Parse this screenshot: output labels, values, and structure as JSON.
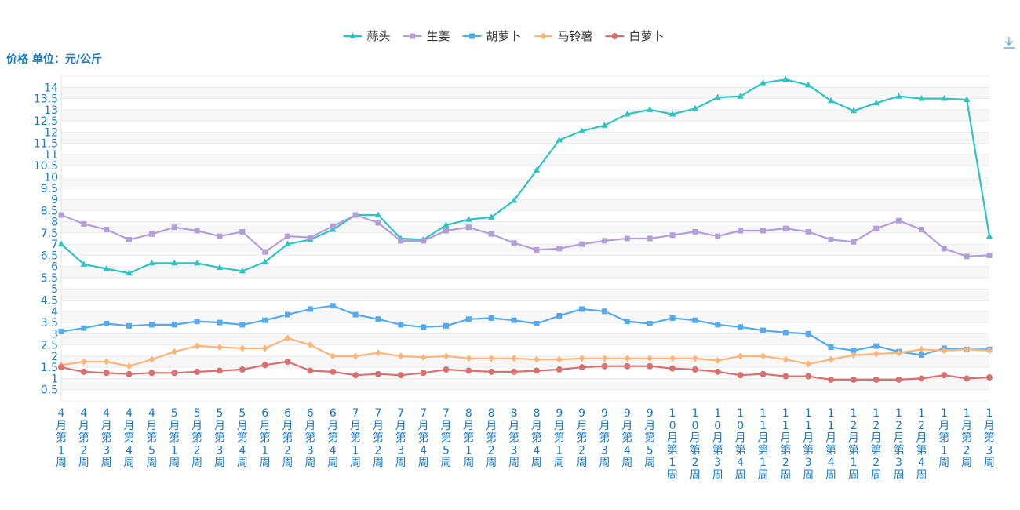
{
  "chart_data": {
    "type": "line",
    "ylabel": "价格 单位：元/公斤",
    "ylim": [
      0,
      14.5
    ],
    "y_ticks": [
      0.5,
      1,
      1.5,
      2,
      2.5,
      3,
      3.5,
      4,
      4.5,
      5,
      5.5,
      6,
      6.5,
      7,
      7.5,
      8,
      8.5,
      9,
      9.5,
      10,
      10.5,
      11,
      11.5,
      12,
      12.5,
      13,
      13.5,
      14
    ],
    "grid": true,
    "legend_position": "top-center",
    "categories": [
      "4月第1周",
      "4月第2周",
      "4月第3周",
      "4月第4周",
      "4月第5周",
      "5月第1周",
      "5月第2周",
      "5月第3周",
      "5月第4周",
      "6月第1周",
      "6月第2周",
      "6月第3周",
      "6月第4周",
      "7月第1周",
      "7月第2周",
      "7月第3周",
      "7月第4周",
      "7月第5周",
      "8月第1周",
      "8月第2周",
      "8月第3周",
      "8月第4周",
      "9月第1周",
      "9月第2周",
      "9月第3周",
      "9月第4周",
      "9月第5周",
      "10月第1周",
      "10月第2周",
      "10月第3周",
      "10月第4周",
      "11月第1周",
      "11月第2周",
      "11月第3周",
      "11月第4周",
      "12月第1周",
      "12月第2周",
      "12月第3周",
      "12月第4周",
      "1月第1周",
      "1月第2周",
      "1月第3周"
    ],
    "series": [
      {
        "name": "蒜头",
        "marker": "triangle",
        "color": "#2ec4c4",
        "values": [
          7.0,
          6.1,
          5.9,
          5.7,
          6.15,
          6.15,
          6.15,
          5.95,
          5.8,
          6.2,
          7.0,
          7.2,
          7.65,
          8.3,
          8.3,
          7.25,
          7.2,
          7.85,
          8.1,
          8.2,
          8.95,
          10.3,
          11.65,
          12.05,
          12.3,
          12.8,
          13.0,
          12.8,
          13.05,
          13.55,
          13.6,
          14.2,
          14.35,
          14.1,
          13.4,
          12.95,
          13.3,
          13.6,
          13.5,
          13.5,
          13.45,
          7.35
        ]
      },
      {
        "name": "生姜",
        "marker": "square",
        "color": "#b39ddb",
        "values": [
          8.3,
          7.9,
          7.65,
          7.2,
          7.45,
          7.75,
          7.6,
          7.35,
          7.55,
          6.65,
          7.35,
          7.3,
          7.8,
          8.3,
          7.95,
          7.15,
          7.15,
          7.6,
          7.75,
          7.45,
          7.05,
          6.75,
          6.8,
          7.0,
          7.15,
          7.25,
          7.25,
          7.4,
          7.55,
          7.35,
          7.6,
          7.6,
          7.7,
          7.55,
          7.2,
          7.1,
          7.7,
          8.05,
          7.65,
          6.8,
          6.45,
          6.5
        ]
      },
      {
        "name": "胡萝卜",
        "marker": "square",
        "color": "#55aaee",
        "values": [
          3.1,
          3.25,
          3.45,
          3.35,
          3.4,
          3.4,
          3.55,
          3.5,
          3.4,
          3.6,
          3.85,
          4.1,
          4.25,
          3.85,
          3.65,
          3.4,
          3.3,
          3.35,
          3.65,
          3.7,
          3.6,
          3.45,
          3.8,
          4.1,
          4.0,
          3.55,
          3.45,
          3.7,
          3.6,
          3.4,
          3.3,
          3.15,
          3.05,
          3.0,
          2.4,
          2.25,
          2.45,
          2.2,
          2.05,
          2.35,
          2.3,
          2.3
        ]
      },
      {
        "name": "马铃薯",
        "marker": "diamond",
        "color": "#ffb47a",
        "values": [
          1.6,
          1.75,
          1.75,
          1.55,
          1.85,
          2.2,
          2.45,
          2.4,
          2.35,
          2.35,
          2.8,
          2.5,
          2.0,
          2.0,
          2.15,
          2.0,
          1.95,
          2.0,
          1.9,
          1.9,
          1.9,
          1.85,
          1.85,
          1.9,
          1.9,
          1.9,
          1.9,
          1.9,
          1.9,
          1.8,
          2.0,
          2.0,
          1.85,
          1.65,
          1.85,
          2.05,
          2.1,
          2.15,
          2.3,
          2.25,
          2.3,
          2.25
        ]
      },
      {
        "name": "白萝卜",
        "marker": "circle",
        "color": "#d97070",
        "values": [
          1.5,
          1.3,
          1.25,
          1.2,
          1.25,
          1.25,
          1.3,
          1.35,
          1.4,
          1.6,
          1.75,
          1.35,
          1.3,
          1.15,
          1.2,
          1.15,
          1.25,
          1.4,
          1.35,
          1.3,
          1.3,
          1.35,
          1.4,
          1.5,
          1.55,
          1.55,
          1.55,
          1.45,
          1.4,
          1.3,
          1.15,
          1.2,
          1.1,
          1.1,
          0.95,
          0.95,
          0.95,
          0.95,
          1.0,
          1.15,
          1.0,
          1.05
        ]
      }
    ]
  },
  "toolbar": {
    "download_icon": "download-icon"
  }
}
